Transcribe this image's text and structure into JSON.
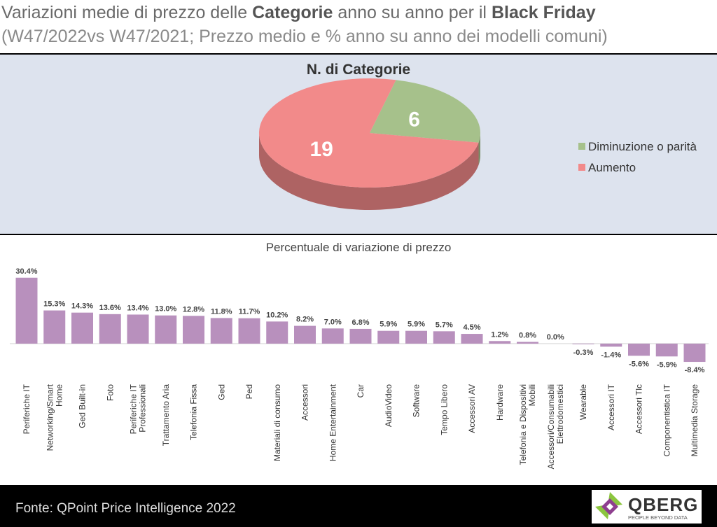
{
  "header": {
    "line1": [
      {
        "text": "Variazioni medie di prezzo delle ",
        "bold": false
      },
      {
        "text": "Categorie",
        "bold": true
      },
      {
        "text": " anno su anno per il ",
        "bold": false
      },
      {
        "text": "Black Friday",
        "bold": true
      }
    ],
    "line2": "(W47/2022vs W47/2021; Prezzo medio e % anno su anno dei modelli comuni)"
  },
  "pie_section": {
    "title": "N. di Categorie",
    "legend": [
      "Diminuzione o parità",
      "Aumento"
    ]
  },
  "bar_section": {
    "title": "Percentuale di variazione di prezzo"
  },
  "footer": {
    "source": "Fonte: QPoint Price Intelligence 2022",
    "logo_name": "QBERG",
    "logo_tagline": "PEOPLE BEYOND DATA"
  },
  "colors": {
    "increase": "#f28a8a",
    "decrease": "#a6c18b",
    "bar": "#b890bd",
    "logo_green": "#8cc63f",
    "logo_purple": "#8e3f8f"
  },
  "chart_data": [
    {
      "type": "pie",
      "title": "N. di Categorie",
      "labels": [
        "Diminuzione o parità",
        "Aumento"
      ],
      "values": [
        6,
        19
      ],
      "colors": [
        "#a6c18b",
        "#f28a8a"
      ],
      "legend": "right",
      "style": "3d"
    },
    {
      "type": "bar",
      "title": "Percentuale di variazione di prezzo",
      "categories": [
        "Periferiche IT",
        "Networking/Smart Home",
        "Ged Built-in",
        "Foto",
        "Periferiche IT Professionali",
        "Trattamento Aria",
        "Telefonia Fissa",
        "Ged",
        "Ped",
        "Materiali di consumo",
        "Accessori",
        "Home Entertainment",
        "Car",
        "AudioVideo",
        "Software",
        "Tempo Libero",
        "Accessori AV",
        "Hardware",
        "Telefonia e Dispositivi Mobili",
        "Accessori/Consumabili Elettrodomestici",
        "Wearable",
        "Accessori IT",
        "Accessori Tlc",
        "Componentistica IT",
        "Multimedia Storage"
      ],
      "category_lines": [
        [
          "Periferiche IT"
        ],
        [
          "Networking/Smart",
          "Home"
        ],
        [
          "Ged Built-in"
        ],
        [
          "Foto"
        ],
        [
          "Periferiche IT",
          "Professionali"
        ],
        [
          "Trattamento Aria"
        ],
        [
          "Telefonia Fissa"
        ],
        [
          "Ged"
        ],
        [
          "Ped"
        ],
        [
          "Materiali di consumo"
        ],
        [
          "Accessori"
        ],
        [
          "Home Entertainment"
        ],
        [
          "Car"
        ],
        [
          "AudioVideo"
        ],
        [
          "Software"
        ],
        [
          "Tempo Libero"
        ],
        [
          "Accessori AV"
        ],
        [
          "Hardware"
        ],
        [
          "Telefonia e Dispositivi",
          "Mobili"
        ],
        [
          "Accessori/Consumabili",
          "Elettrodomestici"
        ],
        [
          "Wearable"
        ],
        [
          "Accessori IT"
        ],
        [
          "Accessori Tlc"
        ],
        [
          "Componentistica IT"
        ],
        [
          "Multimedia Storage"
        ]
      ],
      "values": [
        30.4,
        15.3,
        14.3,
        13.6,
        13.4,
        13.0,
        12.8,
        11.8,
        11.7,
        10.2,
        8.2,
        7.0,
        6.8,
        5.9,
        5.9,
        5.7,
        4.5,
        1.2,
        0.8,
        0.0,
        -0.3,
        -1.4,
        -5.6,
        -5.9,
        -8.4
      ],
      "data_labels": [
        "30.4%",
        "15.3%",
        "14.3%",
        "13.6%",
        "13.4%",
        "13.0%",
        "12.8%",
        "11.8%",
        "11.7%",
        "10.2%",
        "8.2%",
        "7.0%",
        "6.8%",
        "5.9%",
        "5.9%",
        "5.7%",
        "4.5%",
        "1.2%",
        "0.8%",
        "0.0%",
        "-0.3%",
        "-1.4%",
        "-5.6%",
        "-5.9%",
        "-8.4%"
      ],
      "ylim": [
        -10,
        32
      ],
      "grid": false,
      "color": "#b890bd"
    }
  ]
}
